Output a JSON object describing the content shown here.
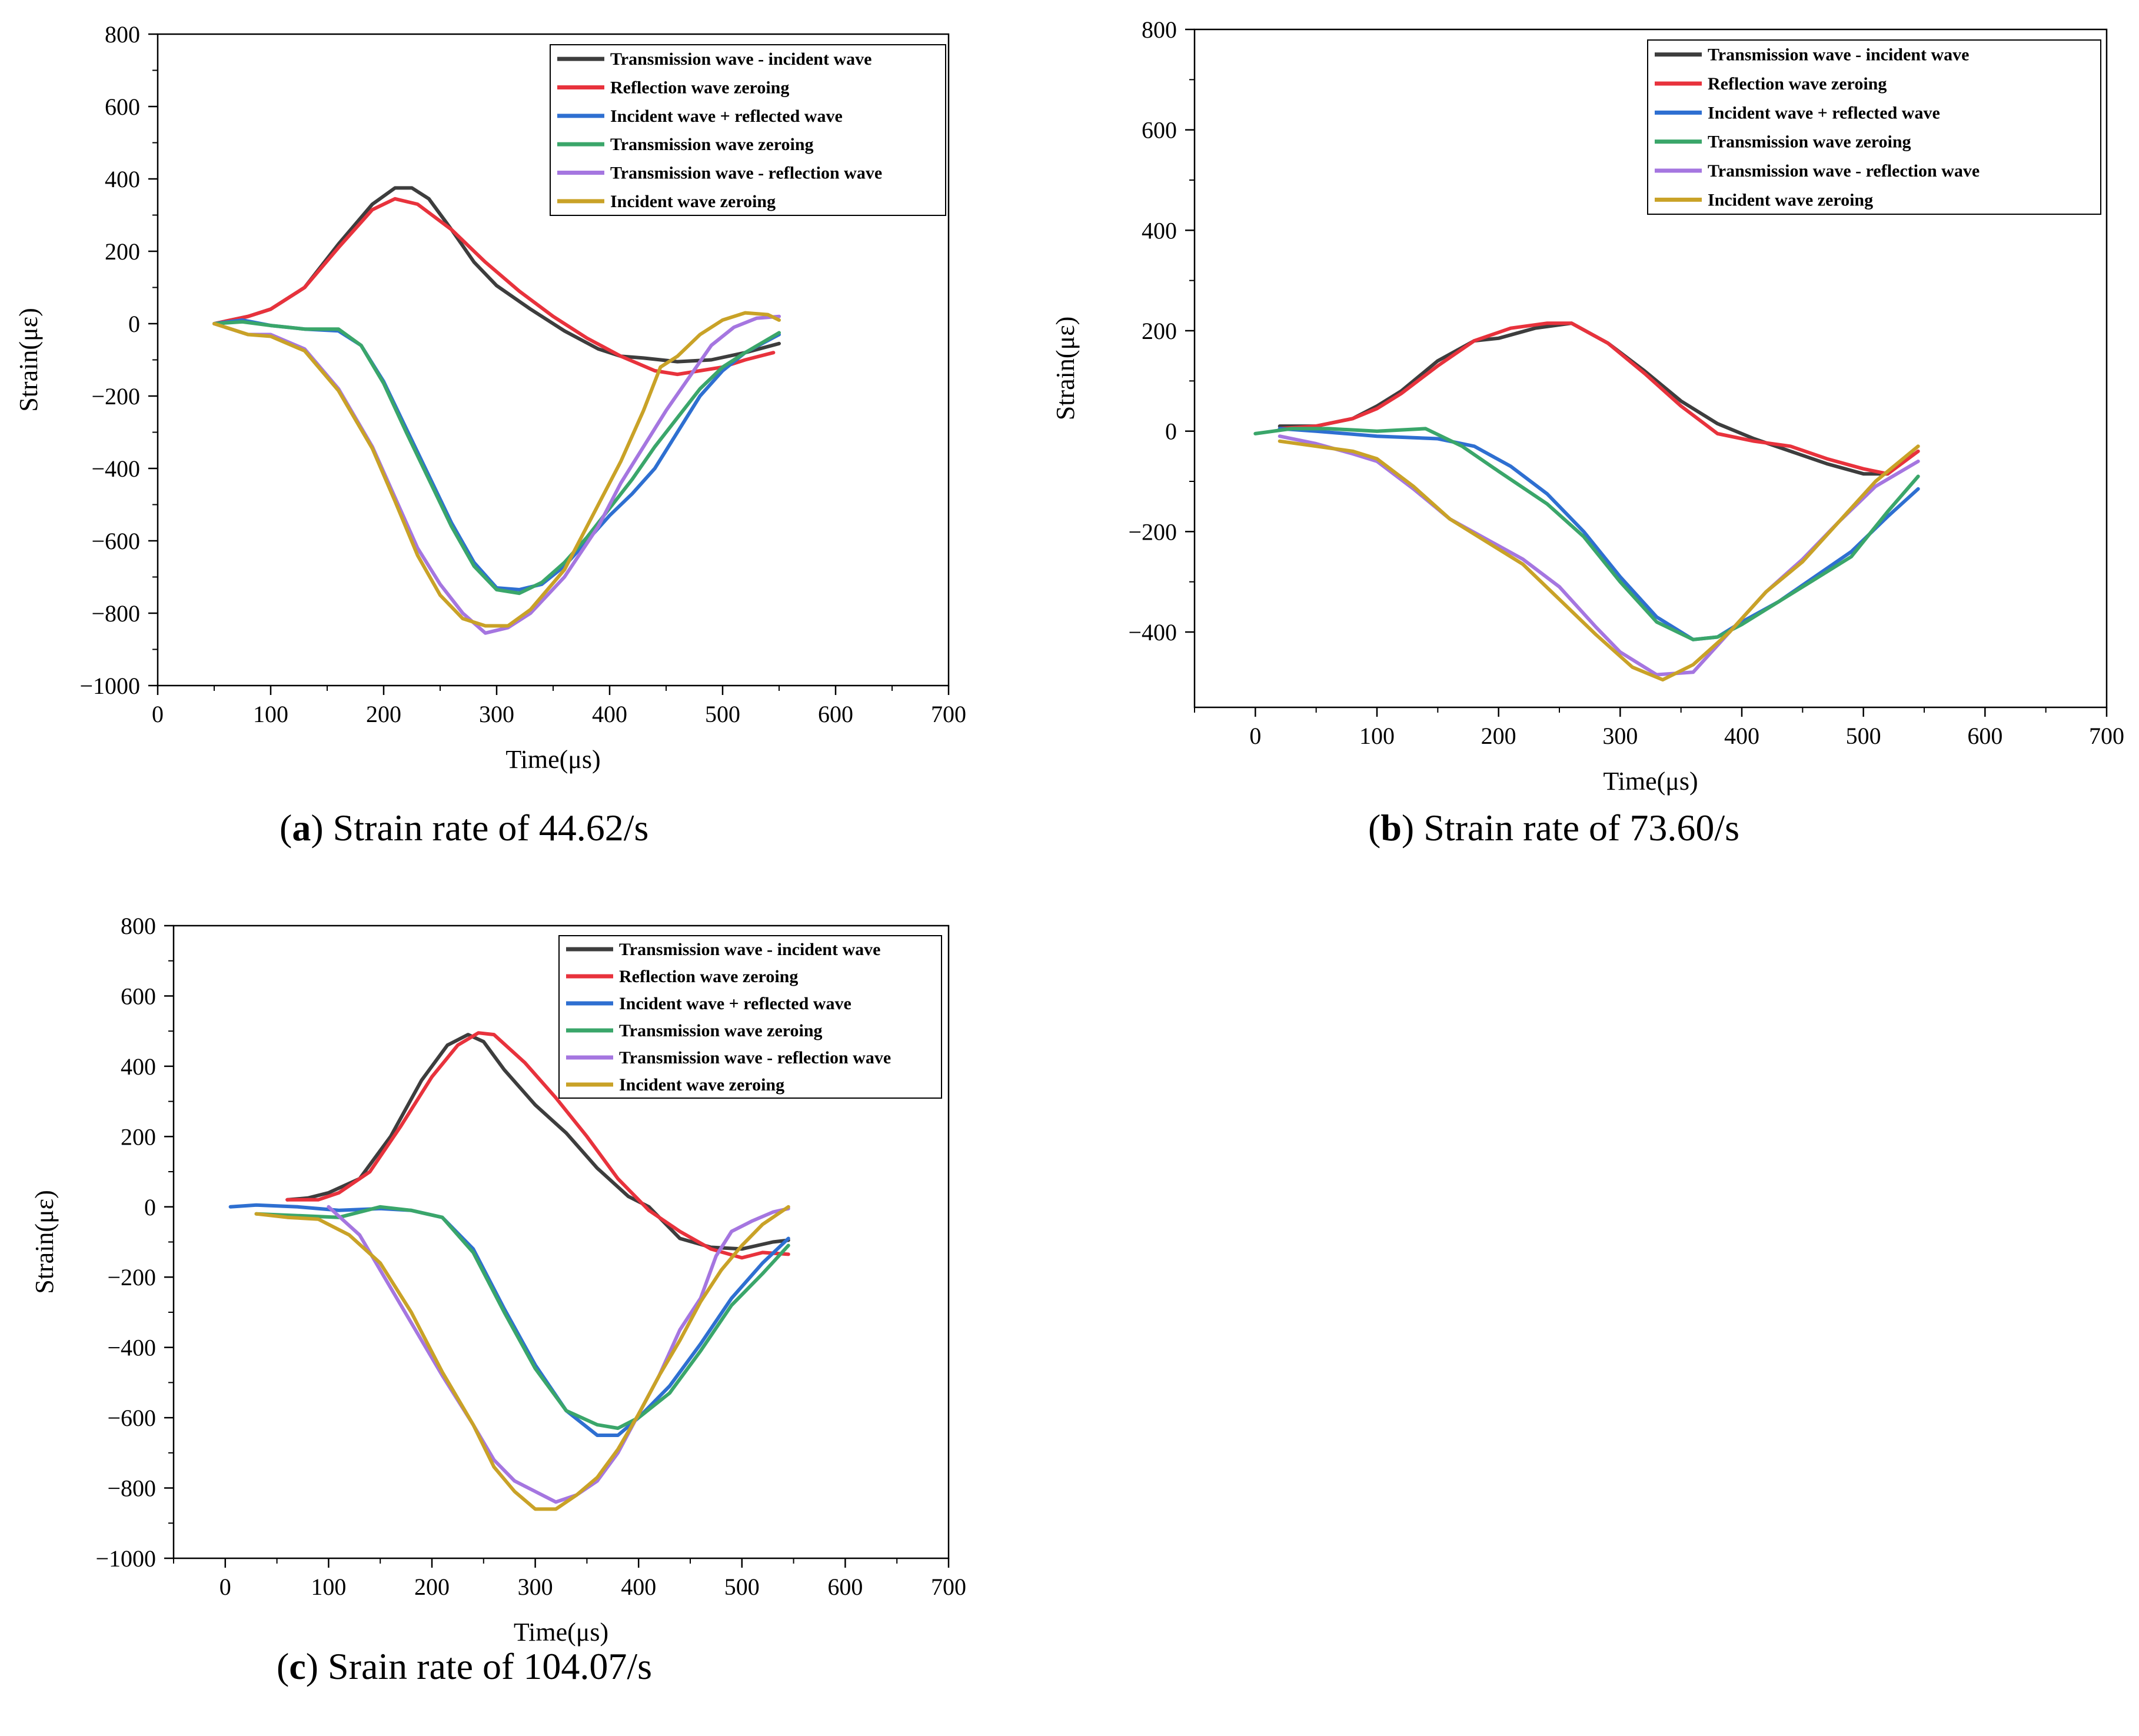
{
  "chart_data": [
    {
      "id": "a",
      "type": "line",
      "caption_letter": "a",
      "caption_text": "Strain rate of 44.62/s",
      "xlabel": "Time(μs)",
      "ylabel": "Strain(με)",
      "xlim": [
        0,
        700
      ],
      "ylim": [
        -1000,
        800
      ],
      "xticks": [
        "0",
        "100",
        "200",
        "300",
        "400",
        "500",
        "600",
        "700"
      ],
      "xtick_values": [
        0,
        100,
        200,
        300,
        400,
        500,
        600,
        700
      ],
      "yticks": [
        "−1000",
        "−800",
        "−600",
        "−400",
        "−200",
        "0",
        "200",
        "400",
        "600",
        "800"
      ],
      "ytick_values": [
        -1000,
        -800,
        -600,
        -400,
        -200,
        0,
        200,
        400,
        600,
        800
      ],
      "legend_position": "top-right",
      "series": [
        {
          "name": "Transmission wave - incident wave",
          "color": "#3d3d3d",
          "x": [
            50,
            80,
            100,
            130,
            160,
            190,
            210,
            225,
            240,
            260,
            280,
            300,
            330,
            360,
            390,
            410,
            430,
            460,
            490,
            520,
            550
          ],
          "y": [
            0,
            20,
            40,
            100,
            220,
            330,
            375,
            375,
            345,
            260,
            170,
            105,
            40,
            -20,
            -70,
            -90,
            -95,
            -105,
            -100,
            -80,
            -55
          ]
        },
        {
          "name": "Reflection wave zeroing",
          "color": "#e8323c",
          "x": [
            50,
            80,
            100,
            130,
            160,
            190,
            210,
            230,
            260,
            290,
            320,
            350,
            380,
            410,
            440,
            460,
            480,
            500,
            520,
            545
          ],
          "y": [
            0,
            20,
            40,
            100,
            210,
            315,
            345,
            330,
            260,
            170,
            90,
            20,
            -40,
            -90,
            -130,
            -140,
            -130,
            -120,
            -100,
            -80
          ]
        },
        {
          "name": "Incident wave + reflected wave",
          "color": "#2e6fd1",
          "x": [
            50,
            75,
            100,
            130,
            160,
            180,
            200,
            220,
            240,
            260,
            280,
            300,
            320,
            340,
            360,
            380,
            400,
            420,
            440,
            460,
            480,
            500,
            520,
            550
          ],
          "y": [
            0,
            10,
            -5,
            -15,
            -20,
            -60,
            -160,
            -290,
            -420,
            -550,
            -660,
            -730,
            -735,
            -720,
            -670,
            -600,
            -530,
            -470,
            -400,
            -300,
            -200,
            -130,
            -80,
            -30
          ]
        },
        {
          "name": "Transmission wave zeroing",
          "color": "#3aa66a",
          "x": [
            50,
            75,
            100,
            130,
            160,
            180,
            200,
            220,
            240,
            260,
            280,
            300,
            320,
            340,
            360,
            380,
            400,
            420,
            440,
            460,
            480,
            500,
            520,
            550
          ],
          "y": [
            0,
            5,
            -5,
            -15,
            -15,
            -60,
            -165,
            -300,
            -430,
            -560,
            -670,
            -735,
            -745,
            -715,
            -660,
            -590,
            -510,
            -430,
            -340,
            -260,
            -180,
            -120,
            -80,
            -25
          ]
        },
        {
          "name": "Transmission wave - reflection wave",
          "color": "#a576e0",
          "x": [
            50,
            80,
            100,
            130,
            160,
            190,
            210,
            230,
            250,
            270,
            290,
            310,
            330,
            360,
            390,
            410,
            430,
            450,
            470,
            490,
            510,
            530,
            550
          ],
          "y": [
            0,
            -30,
            -30,
            -70,
            -180,
            -340,
            -480,
            -620,
            -720,
            -800,
            -855,
            -840,
            -800,
            -700,
            -560,
            -440,
            -340,
            -240,
            -150,
            -60,
            -10,
            15,
            20
          ]
        },
        {
          "name": "Incident wave zeroing",
          "color": "#c9a227",
          "x": [
            50,
            80,
            100,
            130,
            160,
            190,
            210,
            230,
            250,
            270,
            290,
            310,
            330,
            360,
            390,
            410,
            430,
            445,
            460,
            480,
            500,
            520,
            540,
            550
          ],
          "y": [
            0,
            -30,
            -35,
            -75,
            -185,
            -345,
            -490,
            -640,
            -750,
            -815,
            -835,
            -835,
            -790,
            -680,
            -500,
            -380,
            -240,
            -120,
            -90,
            -30,
            10,
            30,
            25,
            10
          ]
        }
      ]
    },
    {
      "id": "b",
      "type": "line",
      "caption_letter": "b",
      "caption_text": "Strain rate of 73.60/s",
      "xlabel": "Time(μs)",
      "ylabel": "Strain(με)",
      "xlim": [
        -50,
        700
      ],
      "ylim": [
        -550,
        800
      ],
      "xticks": [
        "0",
        "100",
        "200",
        "300",
        "400",
        "500",
        "600",
        "700"
      ],
      "xtick_values": [
        0,
        100,
        200,
        300,
        400,
        500,
        600,
        700
      ],
      "yticks": [
        "−400",
        "−200",
        "0",
        "200",
        "400",
        "600",
        "800"
      ],
      "ytick_values": [
        -400,
        -200,
        0,
        200,
        400,
        600,
        800
      ],
      "legend_position": "top-right",
      "series": [
        {
          "name": "Transmission wave - incident wave",
          "color": "#3d3d3d",
          "x": [
            20,
            50,
            80,
            100,
            120,
            150,
            180,
            200,
            230,
            260,
            290,
            320,
            350,
            380,
            410,
            440,
            470,
            500,
            520,
            540
          ],
          "y": [
            10,
            10,
            25,
            50,
            80,
            140,
            180,
            185,
            205,
            215,
            175,
            120,
            60,
            15,
            -15,
            -40,
            -65,
            -85,
            -85,
            -45
          ]
        },
        {
          "name": "Reflection wave zeroing",
          "color": "#e8323c",
          "x": [
            20,
            50,
            80,
            100,
            120,
            150,
            180,
            210,
            240,
            260,
            290,
            320,
            350,
            380,
            410,
            440,
            470,
            500,
            520,
            545
          ],
          "y": [
            5,
            10,
            25,
            45,
            75,
            130,
            180,
            205,
            215,
            215,
            175,
            115,
            50,
            -5,
            -20,
            -30,
            -55,
            -75,
            -85,
            -40
          ]
        },
        {
          "name": "Incident wave + reflected wave",
          "color": "#2e6fd1",
          "x": [
            20,
            50,
            100,
            150,
            180,
            210,
            240,
            270,
            300,
            330,
            360,
            380,
            400,
            430,
            460,
            490,
            520,
            545
          ],
          "y": [
            5,
            0,
            -10,
            -15,
            -30,
            -70,
            -125,
            -200,
            -290,
            -370,
            -415,
            -410,
            -380,
            -340,
            -290,
            -240,
            -170,
            -115
          ]
        },
        {
          "name": "Transmission wave zeroing",
          "color": "#3aa66a",
          "x": [
            0,
            30,
            60,
            100,
            140,
            170,
            200,
            240,
            270,
            300,
            330,
            360,
            380,
            400,
            430,
            460,
            490,
            520,
            545
          ],
          "y": [
            -5,
            5,
            5,
            0,
            5,
            -30,
            -80,
            -145,
            -210,
            -300,
            -380,
            -415,
            -410,
            -385,
            -340,
            -295,
            -250,
            -160,
            -90
          ]
        },
        {
          "name": "Transmission wave - reflection wave",
          "color": "#a576e0",
          "x": [
            20,
            50,
            80,
            100,
            130,
            160,
            190,
            220,
            250,
            280,
            300,
            330,
            360,
            390,
            420,
            450,
            480,
            510,
            545
          ],
          "y": [
            -10,
            -25,
            -45,
            -60,
            -115,
            -175,
            -215,
            -255,
            -310,
            -390,
            -440,
            -485,
            -480,
            -400,
            -320,
            -255,
            -180,
            -110,
            -60
          ]
        },
        {
          "name": "Incident wave zeroing",
          "color": "#c9a227",
          "x": [
            20,
            50,
            80,
            100,
            130,
            160,
            190,
            220,
            250,
            280,
            310,
            335,
            360,
            390,
            420,
            450,
            480,
            510,
            545
          ],
          "y": [
            -20,
            -30,
            -40,
            -55,
            -110,
            -175,
            -220,
            -265,
            -335,
            -405,
            -470,
            -495,
            -465,
            -400,
            -320,
            -260,
            -180,
            -100,
            -30
          ]
        }
      ]
    },
    {
      "id": "c",
      "type": "line",
      "caption_letter": "c",
      "caption_text": "Srain rate of 104.07/s",
      "xlabel": "Time(μs)",
      "ylabel": "Strain(με)",
      "xlim": [
        -50,
        700
      ],
      "ylim": [
        -1000,
        800
      ],
      "xticks": [
        "0",
        "100",
        "200",
        "300",
        "400",
        "500",
        "600",
        "700"
      ],
      "xtick_values": [
        0,
        100,
        200,
        300,
        400,
        500,
        600,
        700
      ],
      "yticks": [
        "−1000",
        "−800",
        "−600",
        "−400",
        "−200",
        "0",
        "200",
        "400",
        "600",
        "800"
      ],
      "ytick_values": [
        -1000,
        -800,
        -600,
        -400,
        -200,
        0,
        200,
        400,
        600,
        800
      ],
      "legend_position": "top-right",
      "series": [
        {
          "name": "Transmission wave - incident wave",
          "color": "#3d3d3d",
          "x": [
            60,
            80,
            100,
            130,
            160,
            190,
            215,
            235,
            250,
            270,
            300,
            330,
            360,
            390,
            410,
            440,
            470,
            500,
            530,
            545
          ],
          "y": [
            20,
            25,
            40,
            80,
            200,
            360,
            460,
            490,
            470,
            390,
            290,
            210,
            110,
            30,
            0,
            -90,
            -115,
            -120,
            -100,
            -95
          ]
        },
        {
          "name": "Reflection wave zeroing",
          "color": "#e8323c",
          "x": [
            60,
            90,
            110,
            140,
            170,
            200,
            225,
            245,
            260,
            290,
            320,
            350,
            380,
            410,
            440,
            470,
            500,
            520,
            545
          ],
          "y": [
            20,
            20,
            40,
            100,
            230,
            370,
            460,
            495,
            490,
            410,
            310,
            200,
            80,
            -10,
            -70,
            -120,
            -145,
            -130,
            -135
          ]
        },
        {
          "name": "Incident wave + reflected wave",
          "color": "#2e6fd1",
          "x": [
            5,
            30,
            70,
            110,
            150,
            180,
            210,
            240,
            270,
            300,
            330,
            360,
            380,
            400,
            430,
            460,
            490,
            520,
            545
          ],
          "y": [
            0,
            5,
            0,
            -10,
            -5,
            -10,
            -30,
            -120,
            -290,
            -450,
            -580,
            -650,
            -650,
            -600,
            -510,
            -390,
            -260,
            -160,
            -90
          ]
        },
        {
          "name": "Transmission wave zeroing",
          "color": "#3aa66a",
          "x": [
            30,
            70,
            110,
            150,
            180,
            210,
            240,
            270,
            300,
            330,
            360,
            380,
            400,
            430,
            460,
            490,
            520,
            545
          ],
          "y": [
            -20,
            -25,
            -30,
            0,
            -10,
            -30,
            -130,
            -300,
            -460,
            -580,
            -620,
            -630,
            -600,
            -530,
            -410,
            -280,
            -190,
            -110
          ]
        },
        {
          "name": "Transmission wave - reflection wave",
          "color": "#a576e0",
          "x": [
            100,
            115,
            130,
            150,
            180,
            210,
            240,
            260,
            280,
            300,
            320,
            340,
            360,
            380,
            400,
            420,
            440,
            460,
            475,
            490,
            510,
            530,
            545
          ],
          "y": [
            0,
            -40,
            -80,
            -180,
            -330,
            -480,
            -620,
            -720,
            -780,
            -810,
            -840,
            -820,
            -780,
            -700,
            -590,
            -480,
            -350,
            -260,
            -140,
            -70,
            -40,
            -15,
            -5
          ]
        },
        {
          "name": "Incident wave zeroing",
          "color": "#c9a227",
          "x": [
            30,
            60,
            90,
            120,
            150,
            180,
            210,
            240,
            260,
            280,
            300,
            320,
            340,
            360,
            380,
            400,
            420,
            440,
            460,
            480,
            500,
            520,
            545
          ],
          "y": [
            -20,
            -30,
            -35,
            -80,
            -160,
            -300,
            -470,
            -620,
            -740,
            -810,
            -860,
            -860,
            -820,
            -770,
            -690,
            -590,
            -480,
            -380,
            -270,
            -180,
            -110,
            -50,
            0
          ]
        }
      ]
    }
  ]
}
